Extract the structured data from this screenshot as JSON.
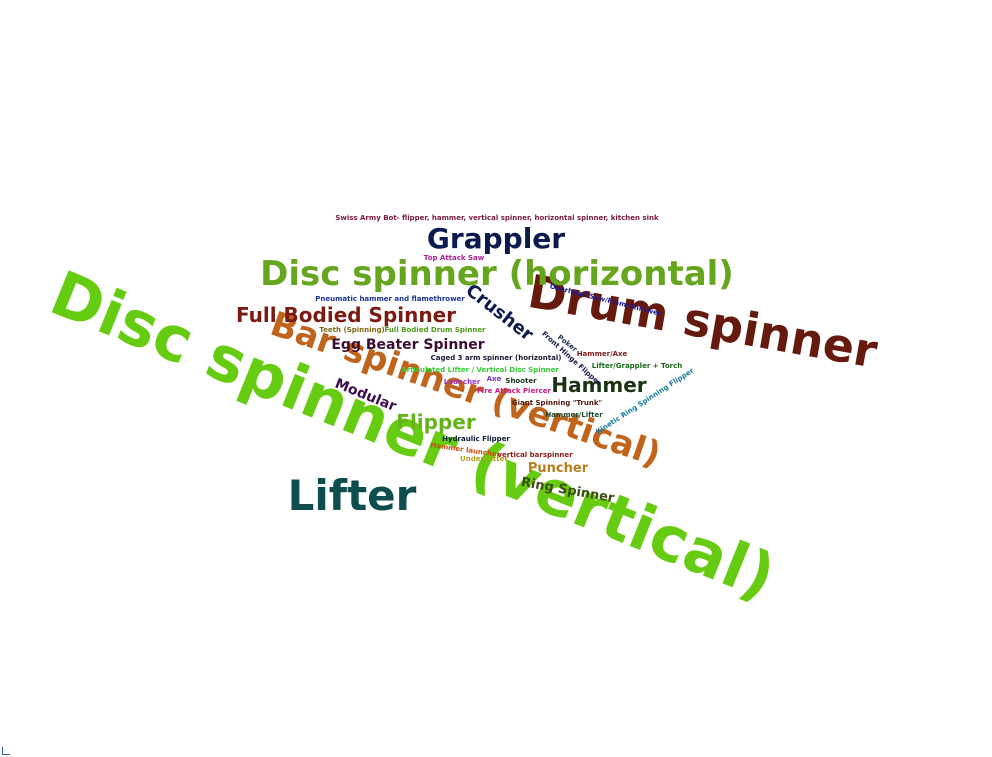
{
  "word_cloud": {
    "words": [
      {
        "text": "Disc spinner (vertical)",
        "color": "#66cc11"
      },
      {
        "text": "Drum spinner",
        "color": "#661a0d"
      },
      {
        "text": "Bar spinner (vertical)",
        "color": "#c0641c"
      },
      {
        "text": "Disc spinner (horizontal)",
        "color": "#66a61e"
      },
      {
        "text": "Lifter",
        "color": "#0d4d4d"
      },
      {
        "text": "Grappler",
        "color": "#0d1a4d"
      },
      {
        "text": "Full Bodied Spinner",
        "color": "#7a1a12"
      },
      {
        "text": "Hammer",
        "color": "#1a3312"
      },
      {
        "text": "Flipper",
        "color": "#66b319"
      },
      {
        "text": "Crusher",
        "color": "#0d1a4d"
      },
      {
        "text": "Egg Beater Spinner",
        "color": "#3d0d33"
      },
      {
        "text": "Modular",
        "color": "#3d0d4d"
      },
      {
        "text": "Puncher",
        "color": "#b3801a"
      },
      {
        "text": "Ring Spinner",
        "color": "#3d4d0d"
      },
      {
        "text": "Swiss Army Bot- flipper, hammer, vertical spinner, horizontal spinner, kitchen sink",
        "color": "#7a1a3d"
      },
      {
        "text": "Top Attack Saw",
        "color": "#b31a99"
      },
      {
        "text": "Pneumatic hammer and flamethrower",
        "color": "#1a3399"
      },
      {
        "text": "Teeth (Spinning)",
        "color": "#806619"
      },
      {
        "text": "Full Bodied Drum Spinner",
        "color": "#4d9919"
      },
      {
        "text": "Caged 3 arm spinner (horizontal)",
        "color": "#1a1a33"
      },
      {
        "text": "Articulated Lifter / Vertical Disc Spinner",
        "color": "#33cc33"
      },
      {
        "text": "Launcher",
        "color": "#9933cc"
      },
      {
        "text": "Axe",
        "color": "#7a33cc"
      },
      {
        "text": "Shooter",
        "color": "#1a3319"
      },
      {
        "text": "Fire Attack Piercer",
        "color": "#cc1a80"
      },
      {
        "text": "Giant Spinning \"Trunk\"",
        "color": "#4d1a0d"
      },
      {
        "text": "Hammer/Lifter",
        "color": "#1a4d33"
      },
      {
        "text": "Hydraulic Flipper",
        "color": "#0d1a33"
      },
      {
        "text": "Hammer launcher",
        "color": "#cc4d0d"
      },
      {
        "text": "vertical barspinner",
        "color": "#8a1a1a"
      },
      {
        "text": "Undercutter",
        "color": "#b3a01a"
      },
      {
        "text": "Overhead Saw/Flamethrower",
        "color": "#1a1a99"
      },
      {
        "text": "Poker",
        "color": "#1a334d"
      },
      {
        "text": "Front Hinge Flipper",
        "color": "#1a1a4d"
      },
      {
        "text": "Hammer/Axe",
        "color": "#801a1a"
      },
      {
        "text": "Lifter/Grappler + Torch",
        "color": "#1a661a"
      },
      {
        "text": "Kinetic Ring Spinning Flipper",
        "color": "#1a7a99"
      }
    ]
  }
}
